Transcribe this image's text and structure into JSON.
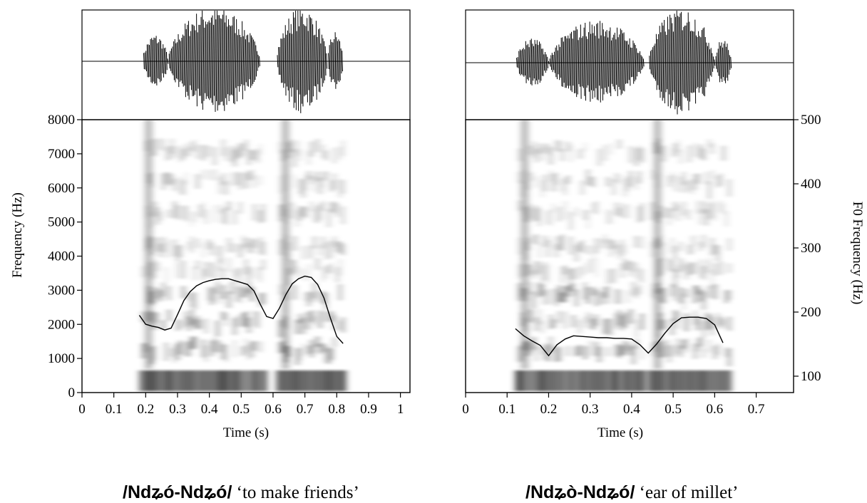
{
  "chart_data": [
    {
      "type": "spectrogram",
      "panel": "left",
      "xlabel": "Time (s)",
      "ylabel": "Frequency (Hz)",
      "xlim": [
        0,
        1.03
      ],
      "ylim": [
        0,
        8000
      ],
      "x_ticks": [
        0,
        0.1,
        0.2,
        0.3,
        0.4,
        0.5,
        0.6,
        0.7,
        0.8,
        0.9,
        1
      ],
      "x_tick_labels": [
        "0",
        "0.1",
        "0.2",
        "0.3",
        "0.4",
        "0.5",
        "0.6",
        "0.7",
        "0.8",
        "0.9",
        "1"
      ],
      "y_ticks": [
        0,
        1000,
        2000,
        3000,
        4000,
        5000,
        6000,
        7000,
        8000
      ],
      "y_tick_labels": [
        "0",
        "1000",
        "2000",
        "3000",
        "4000",
        "5000",
        "6000",
        "7000",
        "8000"
      ],
      "speech_regions_s": [
        [
          0.18,
          0.58
        ],
        [
          0.61,
          0.83
        ]
      ],
      "waveform_segments_s": [
        [
          0.19,
          0.27,
          0.5
        ],
        [
          0.27,
          0.56,
          1.0
        ],
        [
          0.61,
          0.77,
          1.0
        ],
        [
          0.77,
          0.82,
          0.55
        ]
      ],
      "f0_series": {
        "x": [
          0.18,
          0.2,
          0.22,
          0.24,
          0.26,
          0.28,
          0.3,
          0.32,
          0.34,
          0.36,
          0.38,
          0.4,
          0.42,
          0.44,
          0.46,
          0.48,
          0.5,
          0.52,
          0.54,
          0.56,
          0.58,
          0.6,
          0.62,
          0.64,
          0.66,
          0.68,
          0.7,
          0.72,
          0.74,
          0.76,
          0.78,
          0.8,
          0.82
        ],
        "y": [
          195,
          181,
          178,
          176,
          172,
          175,
          196,
          218,
          232,
          241,
          246,
          249,
          251,
          252,
          252,
          249,
          246,
          243,
          233,
          212,
          193,
          190,
          206,
          227,
          244,
          252,
          256,
          254,
          243,
          222,
          191,
          162,
          151
        ]
      },
      "caption": {
        "word": "/Ndʑó-Ndʑó/",
        "gloss": "‘to make friends’"
      }
    },
    {
      "type": "spectrogram",
      "panel": "right",
      "xlabel": "Time (s)",
      "ylabel": "F0 Frequency (Hz)",
      "xlim": [
        0,
        0.79
      ],
      "ylim": [
        80,
        500
      ],
      "x_ticks": [
        0,
        0.1,
        0.2,
        0.3,
        0.4,
        0.5,
        0.6,
        0.7
      ],
      "x_tick_labels": [
        "0",
        "0.1",
        "0.2",
        "0.3",
        "0.4",
        "0.5",
        "0.6",
        "0.7"
      ],
      "y_ticks": [
        100,
        200,
        300,
        400,
        500
      ],
      "y_tick_labels": [
        "100",
        "200",
        "300",
        "400",
        "500"
      ],
      "speech_regions_s": [
        [
          0.12,
          0.43
        ],
        [
          0.44,
          0.64
        ]
      ],
      "waveform_segments_s": [
        [
          0.12,
          0.2,
          0.45
        ],
        [
          0.2,
          0.43,
          0.78
        ],
        [
          0.44,
          0.6,
          1.0
        ],
        [
          0.6,
          0.64,
          0.45
        ]
      ],
      "f0_series": {
        "x": [
          0.12,
          0.14,
          0.16,
          0.18,
          0.2,
          0.22,
          0.24,
          0.26,
          0.28,
          0.3,
          0.32,
          0.34,
          0.36,
          0.38,
          0.4,
          0.42,
          0.44,
          0.46,
          0.48,
          0.5,
          0.52,
          0.54,
          0.56,
          0.58,
          0.6,
          0.62
        ],
        "y": [
          174,
          163,
          155,
          148,
          132,
          149,
          158,
          163,
          162,
          161,
          160,
          160,
          159,
          159,
          158,
          149,
          136,
          150,
          167,
          182,
          191,
          192,
          192,
          190,
          180,
          152
        ]
      },
      "caption": {
        "word": "/Ndʑò-Ndʑó/",
        "gloss": "‘ear of millet’"
      }
    }
  ]
}
